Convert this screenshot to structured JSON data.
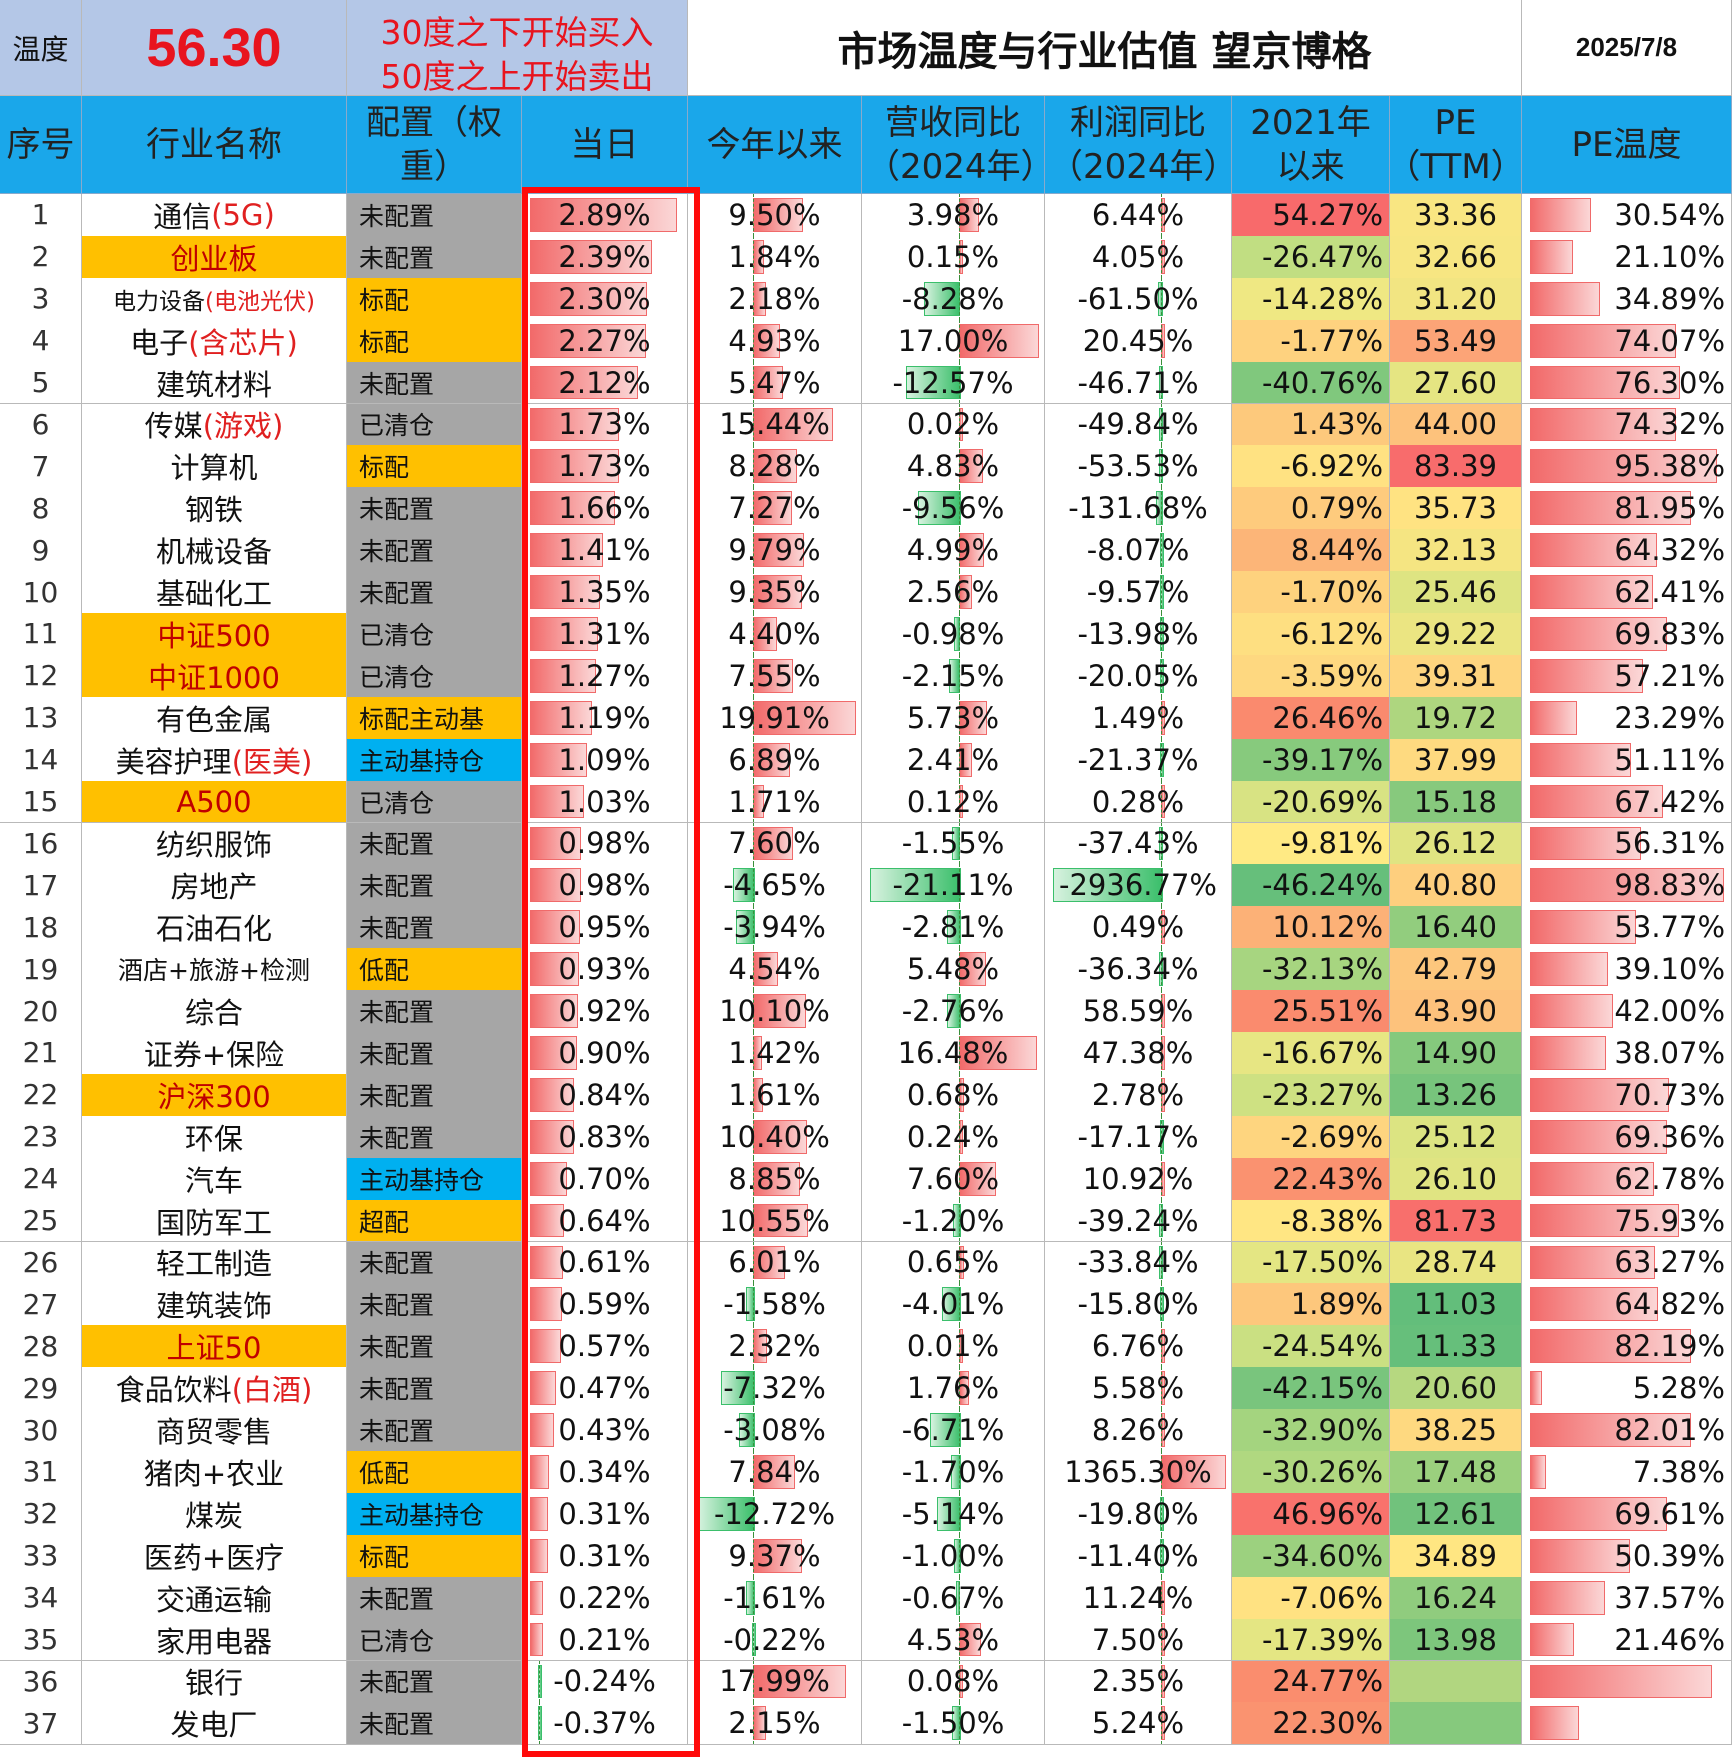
{
  "title_row": {
    "temp_label": "温度",
    "temp_value": "56.30",
    "rule_line1": "30度之下开始买入",
    "rule_line2": "50度之上开始卖出",
    "title": "市场温度与行业估值 望京博格",
    "date": "2025/7/8"
  },
  "headers": [
    "序号",
    "行业名称",
    "配置（权重）",
    "当日",
    "今年以来",
    "营收同比（2024年）",
    "利润同比（2024年）",
    "2021年以来",
    "PE（TTM）",
    "PE温度"
  ],
  "colors": {
    "header_blue": "#1aa7ea",
    "highlight_yellow": "#ffc000",
    "config_gray": "#a6a6a6",
    "config_blue": "#00b0f0",
    "title_box": "#b4c7e7",
    "red_frame": "#ff0a0a"
  },
  "rows": [
    {
      "no": "1",
      "name": "通信",
      "name_red": "(5G)",
      "name_hl": false,
      "cfg": "未配置",
      "cfg_color": "gray",
      "day": "2.89%",
      "ytd": "9.50%",
      "rev": "3.98%",
      "profit": "6.44%",
      "since21": "54.27%",
      "pe": "33.36",
      "pe_temp": "30.54%"
    },
    {
      "no": "2",
      "name": "创业板",
      "name_red": "",
      "name_hl": true,
      "cfg": "未配置",
      "cfg_color": "gray",
      "day": "2.39%",
      "ytd": "1.84%",
      "rev": "0.15%",
      "profit": "4.05%",
      "since21": "-26.47%",
      "pe": "32.66",
      "pe_temp": "21.10%"
    },
    {
      "no": "3",
      "name": "电力设备",
      "name_red": "(电池光伏)",
      "name_hl": false,
      "cfg": "标配",
      "cfg_color": "yellow",
      "day": "2.30%",
      "ytd": "2.18%",
      "rev": "-8.28%",
      "profit": "-61.50%",
      "since21": "-14.28%",
      "pe": "31.20",
      "pe_temp": "34.89%"
    },
    {
      "no": "4",
      "name": "电子",
      "name_red": "(含芯片)",
      "name_hl": false,
      "cfg": "标配",
      "cfg_color": "yellow",
      "day": "2.27%",
      "ytd": "4.93%",
      "rev": "17.00%",
      "profit": "20.45%",
      "since21": "-1.77%",
      "pe": "53.49",
      "pe_temp": "74.07%"
    },
    {
      "no": "5",
      "name": "建筑材料",
      "name_red": "",
      "name_hl": false,
      "cfg": "未配置",
      "cfg_color": "gray",
      "day": "2.12%",
      "ytd": "5.47%",
      "rev": "-12.57%",
      "profit": "-46.71%",
      "since21": "-40.76%",
      "pe": "27.60",
      "pe_temp": "76.30%"
    },
    {
      "no": "6",
      "name": "传媒",
      "name_red": "(游戏)",
      "name_hl": false,
      "cfg": "已清仓",
      "cfg_color": "gray",
      "day": "1.73%",
      "ytd": "15.44%",
      "rev": "0.02%",
      "profit": "-49.84%",
      "since21": "1.43%",
      "pe": "44.00",
      "pe_temp": "74.32%"
    },
    {
      "no": "7",
      "name": "计算机",
      "name_red": "",
      "name_hl": false,
      "cfg": "标配",
      "cfg_color": "yellow",
      "day": "1.73%",
      "ytd": "8.28%",
      "rev": "4.83%",
      "profit": "-53.53%",
      "since21": "-6.92%",
      "pe": "83.39",
      "pe_temp": "95.38%"
    },
    {
      "no": "8",
      "name": "钢铁",
      "name_red": "",
      "name_hl": false,
      "cfg": "未配置",
      "cfg_color": "gray",
      "day": "1.66%",
      "ytd": "7.27%",
      "rev": "-9.56%",
      "profit": "-131.68%",
      "since21": "0.79%",
      "pe": "35.73",
      "pe_temp": "81.95%"
    },
    {
      "no": "9",
      "name": "机械设备",
      "name_red": "",
      "name_hl": false,
      "cfg": "未配置",
      "cfg_color": "gray",
      "day": "1.41%",
      "ytd": "9.79%",
      "rev": "4.99%",
      "profit": "-8.07%",
      "since21": "8.44%",
      "pe": "32.13",
      "pe_temp": "64.32%"
    },
    {
      "no": "10",
      "name": "基础化工",
      "name_red": "",
      "name_hl": false,
      "cfg": "未配置",
      "cfg_color": "gray",
      "day": "1.35%",
      "ytd": "9.35%",
      "rev": "2.56%",
      "profit": "-9.57%",
      "since21": "-1.70%",
      "pe": "25.46",
      "pe_temp": "62.41%"
    },
    {
      "no": "11",
      "name": "中证500",
      "name_red": "",
      "name_hl": true,
      "cfg": "已清仓",
      "cfg_color": "gray",
      "day": "1.31%",
      "ytd": "4.40%",
      "rev": "-0.98%",
      "profit": "-13.98%",
      "since21": "-6.12%",
      "pe": "29.22",
      "pe_temp": "69.83%"
    },
    {
      "no": "12",
      "name": "中证1000",
      "name_red": "",
      "name_hl": true,
      "cfg": "已清仓",
      "cfg_color": "gray",
      "day": "1.27%",
      "ytd": "7.55%",
      "rev": "-2.15%",
      "profit": "-20.05%",
      "since21": "-3.59%",
      "pe": "39.31",
      "pe_temp": "57.21%"
    },
    {
      "no": "13",
      "name": "有色金属",
      "name_red": "",
      "name_hl": false,
      "cfg": "标配主动基",
      "cfg_color": "yellow",
      "day": "1.19%",
      "ytd": "19.91%",
      "rev": "5.73%",
      "profit": "1.49%",
      "since21": "26.46%",
      "pe": "19.72",
      "pe_temp": "23.29%"
    },
    {
      "no": "14",
      "name": "美容护理",
      "name_red": "(医美)",
      "name_hl": false,
      "cfg": "主动基持仓",
      "cfg_color": "blue",
      "day": "1.09%",
      "ytd": "6.89%",
      "rev": "2.41%",
      "profit": "-21.37%",
      "since21": "-39.17%",
      "pe": "37.99",
      "pe_temp": "51.11%"
    },
    {
      "no": "15",
      "name": "A500",
      "name_red": "",
      "name_hl": true,
      "cfg": "已清仓",
      "cfg_color": "gray",
      "day": "1.03%",
      "ytd": "1.71%",
      "rev": "0.12%",
      "profit": "0.28%",
      "since21": "-20.69%",
      "pe": "15.18",
      "pe_temp": "67.42%"
    },
    {
      "no": "16",
      "name": "纺织服饰",
      "name_red": "",
      "name_hl": false,
      "cfg": "未配置",
      "cfg_color": "gray",
      "day": "0.98%",
      "ytd": "7.60%",
      "rev": "-1.55%",
      "profit": "-37.43%",
      "since21": "-9.81%",
      "pe": "26.12",
      "pe_temp": "56.31%"
    },
    {
      "no": "17",
      "name": "房地产",
      "name_red": "",
      "name_hl": false,
      "cfg": "未配置",
      "cfg_color": "gray",
      "day": "0.98%",
      "ytd": "-4.65%",
      "rev": "-21.11%",
      "profit": "-2936.77%",
      "since21": "-46.24%",
      "pe": "40.80",
      "pe_temp": "98.83%"
    },
    {
      "no": "18",
      "name": "石油石化",
      "name_red": "",
      "name_hl": false,
      "cfg": "未配置",
      "cfg_color": "gray",
      "day": "0.95%",
      "ytd": "-3.94%",
      "rev": "-2.81%",
      "profit": "0.49%",
      "since21": "10.12%",
      "pe": "16.40",
      "pe_temp": "53.77%"
    },
    {
      "no": "19",
      "name": "酒店+旅游+检测",
      "name_red": "",
      "name_hl": false,
      "cfg": "低配",
      "cfg_color": "yellow",
      "day": "0.93%",
      "ytd": "4.54%",
      "rev": "5.48%",
      "profit": "-36.34%",
      "since21": "-32.13%",
      "pe": "42.79",
      "pe_temp": "39.10%"
    },
    {
      "no": "20",
      "name": "综合",
      "name_red": "",
      "name_hl": false,
      "cfg": "未配置",
      "cfg_color": "gray",
      "day": "0.92%",
      "ytd": "10.10%",
      "rev": "-2.76%",
      "profit": "58.59%",
      "since21": "25.51%",
      "pe": "43.90",
      "pe_temp": "42.00%"
    },
    {
      "no": "21",
      "name": "证券+保险",
      "name_red": "",
      "name_hl": false,
      "cfg": "未配置",
      "cfg_color": "gray",
      "day": "0.90%",
      "ytd": "1.42%",
      "rev": "16.48%",
      "profit": "47.38%",
      "since21": "-16.67%",
      "pe": "14.90",
      "pe_temp": "38.07%"
    },
    {
      "no": "22",
      "name": "沪深300",
      "name_red": "",
      "name_hl": true,
      "cfg": "未配置",
      "cfg_color": "gray",
      "day": "0.84%",
      "ytd": "1.61%",
      "rev": "0.68%",
      "profit": "2.78%",
      "since21": "-23.27%",
      "pe": "13.26",
      "pe_temp": "70.73%"
    },
    {
      "no": "23",
      "name": "环保",
      "name_red": "",
      "name_hl": false,
      "cfg": "未配置",
      "cfg_color": "gray",
      "day": "0.83%",
      "ytd": "10.40%",
      "rev": "0.24%",
      "profit": "-17.17%",
      "since21": "-2.69%",
      "pe": "25.12",
      "pe_temp": "69.36%"
    },
    {
      "no": "24",
      "name": "汽车",
      "name_red": "",
      "name_hl": false,
      "cfg": "主动基持仓",
      "cfg_color": "blue",
      "day": "0.70%",
      "ytd": "8.85%",
      "rev": "7.60%",
      "profit": "10.92%",
      "since21": "22.43%",
      "pe": "26.10",
      "pe_temp": "62.78%"
    },
    {
      "no": "25",
      "name": "国防军工",
      "name_red": "",
      "name_hl": false,
      "cfg": "超配",
      "cfg_color": "yellow",
      "day": "0.64%",
      "ytd": "10.55%",
      "rev": "-1.20%",
      "profit": "-39.24%",
      "since21": "-8.38%",
      "pe": "81.73",
      "pe_temp": "75.93%"
    },
    {
      "no": "26",
      "name": "轻工制造",
      "name_red": "",
      "name_hl": false,
      "cfg": "未配置",
      "cfg_color": "gray",
      "day": "0.61%",
      "ytd": "6.01%",
      "rev": "0.65%",
      "profit": "-33.84%",
      "since21": "-17.50%",
      "pe": "28.74",
      "pe_temp": "63.27%"
    },
    {
      "no": "27",
      "name": "建筑装饰",
      "name_red": "",
      "name_hl": false,
      "cfg": "未配置",
      "cfg_color": "gray",
      "day": "0.59%",
      "ytd": "-1.58%",
      "rev": "-4.01%",
      "profit": "-15.80%",
      "since21": "1.89%",
      "pe": "11.03",
      "pe_temp": "64.82%"
    },
    {
      "no": "28",
      "name": "上证50",
      "name_red": "",
      "name_hl": true,
      "cfg": "未配置",
      "cfg_color": "gray",
      "day": "0.57%",
      "ytd": "2.32%",
      "rev": "0.01%",
      "profit": "6.76%",
      "since21": "-24.54%",
      "pe": "11.33",
      "pe_temp": "82.19%"
    },
    {
      "no": "29",
      "name": "食品饮料",
      "name_red": "(白酒)",
      "name_hl": false,
      "cfg": "未配置",
      "cfg_color": "gray",
      "day": "0.47%",
      "ytd": "-7.32%",
      "rev": "1.76%",
      "profit": "5.58%",
      "since21": "-42.15%",
      "pe": "20.60",
      "pe_temp": "5.28%"
    },
    {
      "no": "30",
      "name": "商贸零售",
      "name_red": "",
      "name_hl": false,
      "cfg": "未配置",
      "cfg_color": "gray",
      "day": "0.43%",
      "ytd": "-3.08%",
      "rev": "-6.71%",
      "profit": "8.26%",
      "since21": "-32.90%",
      "pe": "38.25",
      "pe_temp": "82.01%"
    },
    {
      "no": "31",
      "name": "猪肉+农业",
      "name_red": "",
      "name_hl": false,
      "cfg": "低配",
      "cfg_color": "yellow",
      "day": "0.34%",
      "ytd": "7.84%",
      "rev": "-1.70%",
      "profit": "1365.30%",
      "since21": "-30.26%",
      "pe": "17.48",
      "pe_temp": "7.38%"
    },
    {
      "no": "32",
      "name": "煤炭",
      "name_red": "",
      "name_hl": false,
      "cfg": "主动基持仓",
      "cfg_color": "blue",
      "day": "0.31%",
      "ytd": "-12.72%",
      "rev": "-5.14%",
      "profit": "-19.80%",
      "since21": "46.96%",
      "pe": "12.61",
      "pe_temp": "69.61%"
    },
    {
      "no": "33",
      "name": "医药+医疗",
      "name_red": "",
      "name_hl": false,
      "cfg": "标配",
      "cfg_color": "yellow",
      "day": "0.31%",
      "ytd": "9.37%",
      "rev": "-1.00%",
      "profit": "-11.40%",
      "since21": "-34.60%",
      "pe": "34.89",
      "pe_temp": "50.39%"
    },
    {
      "no": "34",
      "name": "交通运输",
      "name_red": "",
      "name_hl": false,
      "cfg": "未配置",
      "cfg_color": "gray",
      "day": "0.22%",
      "ytd": "-1.61%",
      "rev": "-0.67%",
      "profit": "11.24%",
      "since21": "-7.06%",
      "pe": "16.24",
      "pe_temp": "37.57%"
    },
    {
      "no": "35",
      "name": "家用电器",
      "name_red": "",
      "name_hl": false,
      "cfg": "已清仓",
      "cfg_color": "gray",
      "day": "0.21%",
      "ytd": "-0.22%",
      "rev": "4.53%",
      "profit": "7.50%",
      "since21": "-17.39%",
      "pe": "13.98",
      "pe_temp": "21.46%"
    },
    {
      "no": "36",
      "name": "银行",
      "name_red": "",
      "name_hl": false,
      "cfg": "未配置",
      "cfg_color": "gray",
      "day": "-0.24%",
      "ytd": "17.99%",
      "rev": "0.08%",
      "profit": "2.35%",
      "since21": "24.77%",
      "pe": "",
      "pe_temp": ""
    },
    {
      "no": "37",
      "name": "发电厂",
      "name_red": "",
      "name_hl": false,
      "cfg": "未配置",
      "cfg_color": "gray",
      "day": "-0.37%",
      "ytd": "2.15%",
      "rev": "-1.50%",
      "profit": "5.24%",
      "since21": "22.30%",
      "pe": "",
      "pe_temp": ""
    }
  ]
}
